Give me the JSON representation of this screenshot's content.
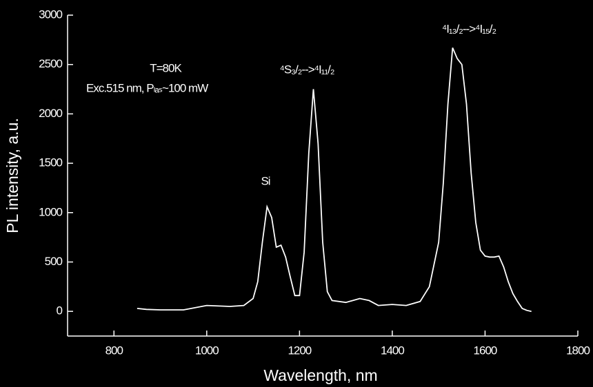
{
  "chart_data": {
    "type": "line",
    "x_label": "Wavelength, nm",
    "y_label": "PL intensity, a.u.",
    "annotations": [
      "T=80K",
      "Exc.515 nm, Pₗₐₛ~100 mW",
      "Si",
      "⁴S₃/₂-->⁴I₁₁/₂",
      "⁴I₁₃/₂-->⁴I₁₅/₂"
    ],
    "xlim": [
      700,
      1800
    ],
    "xticks": [
      800,
      1000,
      1200,
      1400,
      1600,
      1800
    ],
    "ylim": [
      -250,
      3000
    ],
    "yticks": [
      0,
      500,
      1000,
      1500,
      2000,
      2500,
      3000
    ],
    "series": [
      {
        "color": "#ffffff",
        "x": [
          850,
          870,
          900,
          950,
          1000,
          1050,
          1080,
          1100,
          1110,
          1120,
          1130,
          1140,
          1150,
          1160,
          1170,
          1180,
          1190,
          1200,
          1210,
          1220,
          1230,
          1240,
          1250,
          1260,
          1270,
          1300,
          1330,
          1350,
          1370,
          1400,
          1430,
          1460,
          1480,
          1500,
          1510,
          1520,
          1530,
          1540,
          1550,
          1560,
          1570,
          1580,
          1590,
          1600,
          1610,
          1620,
          1630,
          1640,
          1650,
          1660,
          1670,
          1680,
          1690,
          1700
        ],
        "values": [
          30,
          20,
          15,
          15,
          60,
          50,
          60,
          130,
          300,
          700,
          1060,
          950,
          650,
          670,
          550,
          350,
          160,
          160,
          600,
          1600,
          2250,
          1700,
          700,
          200,
          110,
          90,
          130,
          110,
          60,
          70,
          60,
          100,
          250,
          700,
          1300,
          2100,
          2670,
          2560,
          2500,
          2100,
          1400,
          900,
          620,
          560,
          550,
          550,
          560,
          450,
          300,
          180,
          100,
          30,
          10,
          0
        ]
      }
    ]
  }
}
